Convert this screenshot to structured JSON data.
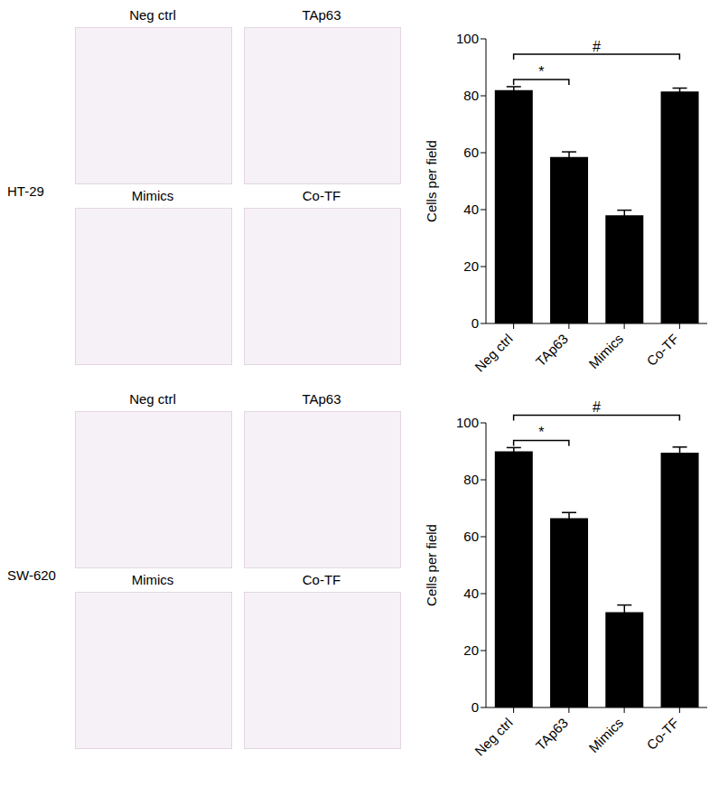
{
  "chart_data": [
    {
      "type": "bar",
      "cell_line": "HT-29",
      "image_panels": [
        "Neg ctrl",
        "TAp63",
        "Mimics",
        "Co-TF"
      ],
      "categories": [
        "Neg ctrl",
        "TAp63",
        "Mimics",
        "Co-TF"
      ],
      "values": [
        82,
        58.5,
        38,
        81.5
      ],
      "errors": [
        1.2,
        1.8,
        1.8,
        1.2
      ],
      "color": "#000000",
      "ylabel": "Cells per field",
      "ylim": [
        0,
        100
      ],
      "yticks": [
        0,
        20,
        40,
        60,
        80,
        100
      ],
      "annotations": [
        {
          "text": "*",
          "from": "Neg ctrl",
          "to": "TAp63"
        },
        {
          "text": "#",
          "from": "Neg ctrl",
          "to": "Co-TF"
        }
      ]
    },
    {
      "type": "bar",
      "cell_line": "SW-620",
      "image_panels": [
        "Neg ctrl",
        "TAp63",
        "Mimics",
        "Co-TF"
      ],
      "categories": [
        "Neg ctrl",
        "TAp63",
        "Mimics",
        "Co-TF"
      ],
      "values": [
        90,
        66.5,
        33.5,
        89.5
      ],
      "errors": [
        1.3,
        2,
        2.5,
        2
      ],
      "color": "#000000",
      "ylabel": "Cells per field",
      "ylim": [
        0,
        100
      ],
      "yticks": [
        0,
        20,
        40,
        60,
        80,
        100
      ],
      "annotations": [
        {
          "text": "*",
          "from": "Neg ctrl",
          "to": "TAp63"
        },
        {
          "text": "#",
          "from": "Neg ctrl",
          "to": "Co-TF"
        }
      ]
    }
  ]
}
